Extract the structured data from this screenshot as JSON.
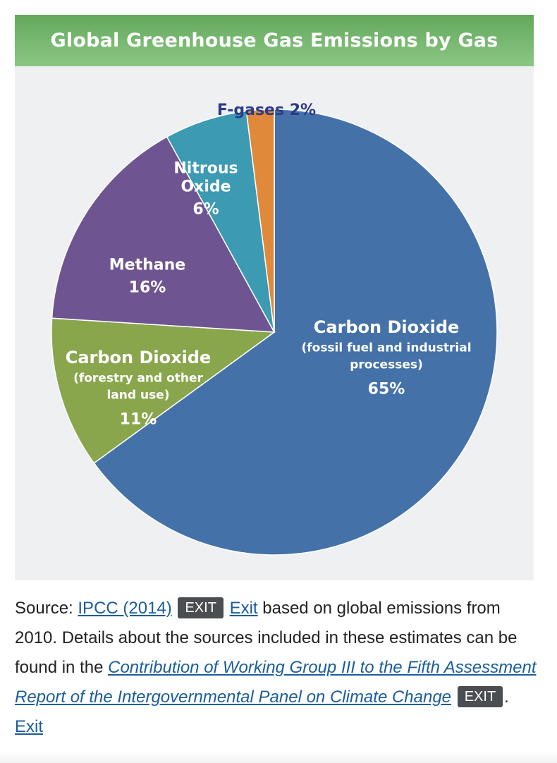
{
  "chart_data": {
    "type": "pie",
    "title": "Global Greenhouse Gas Emissions by Gas",
    "slices": [
      {
        "name": "Carbon Dioxide",
        "sublabel": [
          "(fossil fuel and industrial",
          "processes)"
        ],
        "value": 65,
        "value_label": "65%",
        "color": "#4472a8"
      },
      {
        "name": "Carbon Dioxide",
        "sublabel": [
          "(forestry and other",
          "land use)"
        ],
        "value": 11,
        "value_label": "11%",
        "color": "#8aa64d"
      },
      {
        "name": "Methane",
        "sublabel": [],
        "value": 16,
        "value_label": "16%",
        "color": "#6e5591"
      },
      {
        "name": "Nitrous Oxide",
        "name_lines": [
          "Nitrous",
          "Oxide"
        ],
        "sublabel": [],
        "value": 6,
        "value_label": "6%",
        "color": "#3c9ab3"
      },
      {
        "name": "F-gases",
        "sublabel": [],
        "value": 2,
        "value_label": "2%",
        "color": "#e0893a",
        "label": "F-gases 2%"
      }
    ]
  },
  "caption": {
    "source_prefix": "Source: ",
    "source_link": "IPCC (2014)",
    "exit_badge": "EXIT",
    "exit_link": "Exit",
    "text_1": " based on global emissions from 2010. Details about the sources included in these estimates can be found in the ",
    "report_link": "Contribution of Working Group III to the Fifth Assessment Report of the Intergovernmental Panel on Climate Change",
    "text_2": ". "
  }
}
